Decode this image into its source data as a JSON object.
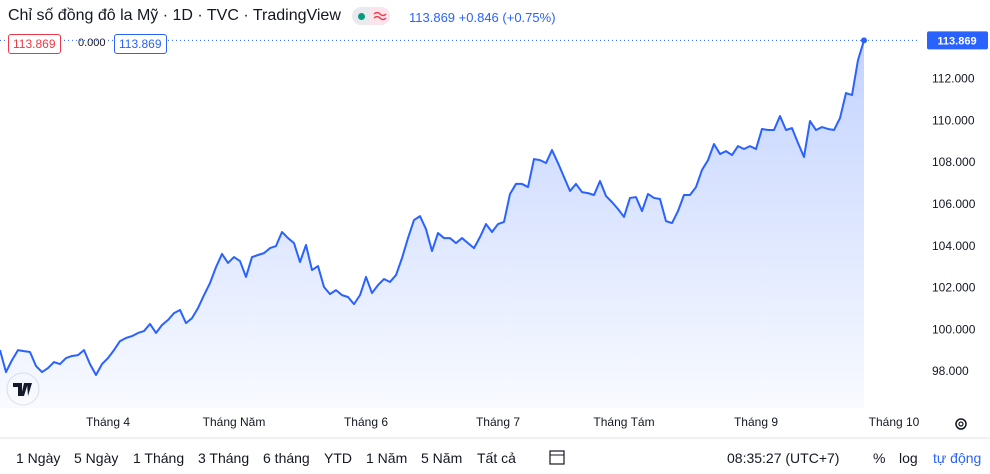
{
  "header": {
    "title": "Chỉ số đồng đô la Mỹ · 1D · TVC · TradingView",
    "quote": {
      "price": "113.869",
      "change": "+0.846",
      "change_percent": "(+0.75%)"
    }
  },
  "legend": {
    "open": "113.869",
    "change": "0.000",
    "close": "113.869"
  },
  "chart_data": {
    "type": "area",
    "color": "#2962ff",
    "grid": false,
    "categories": [
      null,
      null,
      null,
      null,
      null,
      null,
      null,
      null,
      null,
      null,
      null,
      null,
      null,
      null,
      null,
      null,
      null,
      null,
      "Tháng 4",
      null,
      null,
      null,
      null,
      null,
      null,
      null,
      null,
      null,
      null,
      null,
      null,
      null,
      null,
      null,
      null,
      null,
      null,
      null,
      null,
      "Tháng Năm",
      null,
      null,
      null,
      null,
      null,
      null,
      null,
      null,
      null,
      null,
      null,
      null,
      null,
      null,
      null,
      null,
      null,
      null,
      null,
      null,
      null,
      "Tháng 6",
      null,
      null,
      null,
      null,
      null,
      null,
      null,
      null,
      null,
      null,
      null,
      null,
      null,
      null,
      null,
      null,
      null,
      null,
      null,
      null,
      null,
      "Tháng 7",
      null,
      null,
      null,
      null,
      null,
      null,
      null,
      null,
      null,
      null,
      null,
      null,
      null,
      null,
      null,
      null,
      null,
      null,
      null,
      null,
      "Tháng Tám",
      null,
      null,
      null,
      null,
      null,
      null,
      null,
      null,
      null,
      null,
      null,
      null,
      null,
      null,
      null,
      null,
      null,
      null,
      null,
      null,
      null,
      "Tháng 9",
      null,
      null,
      null,
      null,
      null,
      null,
      null,
      null,
      null,
      null,
      null,
      null,
      null,
      null,
      null,
      null,
      null,
      null,
      null,
      null,
      null,
      null,
      "Tháng 10",
      null,
      null,
      null
    ],
    "values": [
      99.05,
      98.0,
      98.57,
      99.05,
      99.0,
      98.96,
      98.29,
      98.0,
      98.19,
      98.48,
      98.38,
      98.67,
      98.77,
      98.81,
      99.05,
      98.38,
      97.86,
      98.38,
      98.67,
      99.05,
      99.48,
      99.63,
      99.72,
      99.87,
      99.96,
      100.3,
      99.87,
      100.25,
      100.49,
      100.82,
      100.97,
      100.34,
      100.58,
      101.06,
      101.68,
      102.26,
      103.02,
      103.65,
      103.22,
      103.5,
      103.31,
      102.55,
      103.5,
      103.6,
      103.69,
      103.93,
      104.03,
      104.7,
      104.41,
      104.17,
      103.26,
      104.08,
      102.88,
      103.07,
      102.07,
      101.73,
      101.92,
      101.68,
      101.59,
      101.25,
      101.68,
      102.55,
      101.78,
      102.16,
      102.45,
      102.31,
      102.64,
      103.45,
      104.41,
      105.27,
      105.46,
      104.84,
      103.79,
      104.65,
      104.41,
      104.41,
      104.17,
      104.41,
      104.17,
      103.93,
      104.46,
      105.08,
      104.7,
      105.08,
      105.18,
      106.52,
      107.0,
      107.0,
      106.85,
      108.19,
      108.14,
      108.0,
      108.62,
      108.0,
      107.33,
      106.66,
      107.0,
      106.61,
      106.56,
      106.47,
      107.14,
      106.42,
      106.13,
      105.8,
      105.42,
      106.33,
      106.37,
      105.7,
      106.52,
      106.33,
      106.28,
      105.22,
      105.13,
      105.7,
      106.47,
      106.47,
      106.85,
      107.67,
      108.14,
      108.91,
      108.43,
      108.57,
      108.38,
      108.81,
      108.67,
      108.81,
      108.67,
      109.63,
      109.58,
      109.58,
      110.25,
      109.58,
      109.67,
      108.96,
      108.29,
      110.01,
      109.58,
      109.72,
      109.63,
      109.58,
      110.15,
      111.35,
      111.25,
      112.93,
      113.869,
      null,
      null,
      null,
      null,
      null,
      null,
      null,
      null
    ],
    "ylim": [
      96.28,
      115.8
    ],
    "yticks": [
      {
        "value": 98,
        "label": "98.000"
      },
      {
        "value": 100,
        "label": "100.000"
      },
      {
        "value": 102,
        "label": "102.000"
      },
      {
        "value": 104,
        "label": "104.000"
      },
      {
        "value": 106,
        "label": "106.000"
      },
      {
        "value": 108,
        "label": "108.000"
      },
      {
        "value": 110,
        "label": "110.000"
      },
      {
        "value": 112,
        "label": "112.000"
      }
    ]
  },
  "toolbar": {
    "ranges": [
      "1 Ngày",
      "5 Ngày",
      "1 Tháng",
      "3 Tháng",
      "6 tháng",
      "YTD",
      "1 Năm",
      "5 Năm",
      "Tất cả"
    ],
    "time": "08:35:27 (UTC+7)",
    "percent": "%",
    "log": "log",
    "auto": "tự động"
  }
}
